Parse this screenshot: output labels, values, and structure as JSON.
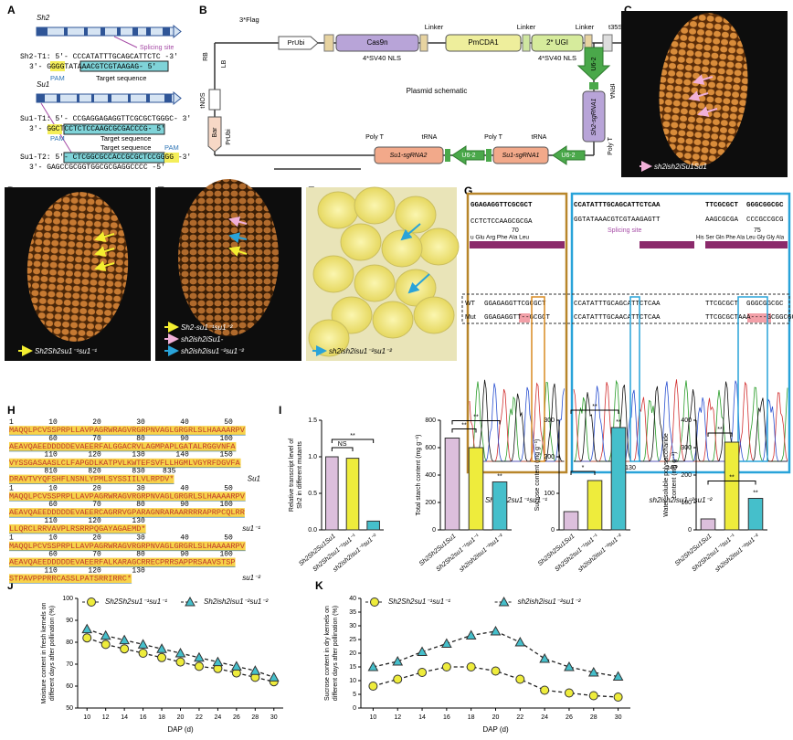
{
  "panel_letters": [
    "A",
    "B",
    "C",
    "D",
    "E",
    "F",
    "G",
    "H",
    "I",
    "J",
    "K"
  ],
  "A": {
    "gene1": "Sh2",
    "sh2_t1": "Sh2-T1: 5'- CCCATATTTGCAGCATTCTC -3'",
    "sh2_t1_rev": "3'- GGGGTATAAACGTCGTAAGAG- 5'",
    "splicing_site": "Splicing site",
    "pam1": "PAM",
    "target1": "Target sequence",
    "gene2": "Su1",
    "su1_t1": "Su1-T1: 5'- CCGAGGAGAGGTTCGCGCTGGGC- 3'",
    "su1_t1_rev": "3'- GGCTCCTCTCCAAGCGCGACCCG- 5'",
    "pam2": "PAM",
    "target2": "Target sequence",
    "target3": "Target sequence",
    "pam3": "PAM",
    "su1_t2": "Su1-T2: 5'- CTCGGCGCCACCGCGCTCCGGGG -3'",
    "su1_t2_rev": "3'- GAGCCGCGGTGGCGCGAGGCCCC -5'"
  },
  "B": {
    "flag": "3*Flag",
    "prubi1": "PrUbi",
    "cas9n": "Cas9n",
    "pmcda1": "PmCDA1",
    "ugi": "2* UGI",
    "linker1": "Linker",
    "linker2": "Linker",
    "linker3": "Linker",
    "t35s": "t35S",
    "nls1": "4*SV40 NLS",
    "nls2": "4*SV40 NLS",
    "rb": "RB",
    "lb": "LB",
    "tnos": "tNOS",
    "bar": "Bar",
    "prubi2": "PrUbi",
    "title": "Plasmid schematic",
    "u6_1": "U6-2",
    "trna1": "tRNA",
    "sgrna1": "Sh2-sgRNA1",
    "polyt1": "Poly T",
    "u6_2": "U6-2",
    "sgrna2": "Su1-sgRNA1",
    "trna2": "tRNA",
    "polyt2": "Poly T",
    "u6_3": "U6-2",
    "sgrna3": "Su1-sgRNA2",
    "trna3": "tRNA",
    "polyt3": "Poly T"
  },
  "C": {
    "label": "sh2ish2iSu1Su1"
  },
  "D": {
    "label": "Sh2Sh2su1⁻¹su1⁻¹"
  },
  "E": {
    "legend": [
      "Sh2-su1⁻¹su1⁻²",
      "sh2ish2iSu1-",
      "sh2ish2isu1⁻²su1⁻²"
    ]
  },
  "F": {
    "label": "sh2ish2isu1⁻²su1⁻²"
  },
  "G": {
    "ref1": "GGAGAGGTTCGCGCT",
    "ref1_comp": "CCTCTCCAAGCGCGA",
    "pos1": "70",
    "aa1": "u  Glu Arg Phe Ala Leu",
    "wt1": "GGAGAGGTTCGCGCT",
    "mut1": "GGAGAGGTT--GCGCT",
    "ref2": "CCATATTTGCAGCATTCTCAA",
    "ref2_comp": "GGTATAAACGTCGTAAGAGTT",
    "splicing_site": "Splicing site",
    "ref3": "TTCGCGCT  GGGCGGCGC",
    "ref3_comp": "AAGCGCGA  CCCGCCGCG",
    "aa3": "His Ser Gln  Phe Ala Leu  Gly Gly Ala",
    "pos3": "75",
    "wt2": "CCATATTTGCAGCATTCTCAA",
    "mut2": "CCATATTTGCAACATTCTCAA",
    "wt3": "TTCGCGCT  GGGCGGCGC",
    "mut3": "TTCGCGCTAAA----GCGGCGC",
    "wt": "WT",
    "mut": "Mut",
    "ticks": [
      "130",
      "140"
    ],
    "caption1": "Sh2Sh2su1⁻¹su1⁻¹",
    "caption2": "sh2ish2isu1⁻²su1⁻²"
  },
  "H": {
    "blocks": [
      {
        "label": "Su1",
        "lines": [
          "1        10        20        30        40        50",
          "MAQQLPCVSSPRPLLAVPAGRWRAGVRGRPNVAGLGRGRLSLHAAAARPV",
          "         60        70        80        90       100",
          "AEAVQAEEDDDDDEVAEERFALGGACRVLAGMPAPLGATALRGGVNFA",
          "        110       120       130       140       150",
          "VYSSGASAASLCLFAPGDLKATPVLKWTEFSVFLLHGMLVGYRFDGVFA",
          "        810       820       830    835",
          "DRAVTVYQFSHFLNSNLYPMLSYSSIILVLRPDV*"
        ]
      },
      {
        "label": "su1⁻¹",
        "lines": [
          "1        10        20        30        40        50",
          "MAQQLPCVSSPRPLLAVPAGRWRAGVRGRPNVAGLGRGRLSLHAAAARPV",
          "         60        70        80        90       100",
          "AEAVQAEEDDDDDEVAEERCAGRRVGPARAGNRARAARRRRAPRPCQLRR",
          "        110       120       130",
          "LLQRCLRRVAVPLRSRRPQGAYAGAEMD*"
        ]
      },
      {
        "label": "su1⁻²",
        "lines": [
          "1        10        20        30        40        50",
          "MAQQLPCVSSPRPLLAVPAGRWRAGVRGRPNVAGLGRGRLSLHAAAARPV",
          "         60        70        80        90       100",
          "AEAVQAEEDDDDDEVAEERFALKARAGCRRECPRRSAPPRSAAVSTSP",
          "        110       120       130",
          "STPAVPPPRRCASSLPATSRRIRRC*"
        ]
      }
    ]
  },
  "chart_data": [
    {
      "type": "bar",
      "ylabel": [
        "Relative transcript level of",
        "Sh2 in different mutants"
      ],
      "categories": [
        "Sh2Sh2Su1Su1",
        "Sh2Sh2su1⁻¹su1⁻¹",
        "sh2ish2isu1⁻²su1⁻²"
      ],
      "values": [
        1.0,
        0.98,
        0.12
      ],
      "colors": [
        "#dcbfdc",
        "#eeec3c",
        "#45bfcb"
      ],
      "ylim": [
        0,
        1.5
      ],
      "yticks": [
        {
          "value": 0,
          "label": "0.0"
        },
        0.5,
        {
          "value": 1,
          "label": "1.0"
        },
        1.5
      ],
      "annotations": [
        "NS",
        "**"
      ]
    },
    {
      "type": "bar",
      "ylabel": [
        "Total starch content (mg g⁻¹)"
      ],
      "categories": [
        "Sh2Sh2Su1Su1",
        "Sh2Sh2su1⁻¹su1⁻¹",
        "sh2ish2isu1⁻²su1⁻²"
      ],
      "values": [
        670,
        600,
        350
      ],
      "colors": [
        "#dcbfdc",
        "#eeec3c",
        "#45bfcb"
      ],
      "ylim": [
        0,
        800
      ],
      "yticks": [
        0,
        200,
        400,
        600,
        800
      ],
      "annotations": [
        "**",
        "**",
        "**"
      ]
    },
    {
      "type": "bar",
      "ylabel": [
        "Sucrose content (mg g⁻¹)"
      ],
      "categories": [
        "Sh2Sh2Su1Su1",
        "Sh2Sh2su1⁻¹su1⁻¹",
        "sh2ish2isu1⁻²su1⁻²"
      ],
      "values": [
        50,
        135,
        280
      ],
      "colors": [
        "#dcbfdc",
        "#eeec3c",
        "#45bfcb"
      ],
      "ylim": [
        0,
        300
      ],
      "yticks": [
        0,
        100,
        200,
        300
      ],
      "annotations": [
        "*",
        "**",
        "**"
      ]
    },
    {
      "type": "bar",
      "ylabel": [
        "Water-soluble polysaccharide",
        "content (mg g⁻¹)"
      ],
      "categories": [
        "Sh2Sh2Su1Su1",
        "Sh2Sh2su1⁻¹su1⁻¹",
        "sh2ish2isu1⁻²su1⁻²"
      ],
      "values": [
        40,
        320,
        115
      ],
      "colors": [
        "#dcbfdc",
        "#eeec3c",
        "#45bfcb"
      ],
      "ylim": [
        0,
        400
      ],
      "yticks": [
        0,
        100,
        200,
        300,
        400
      ],
      "annotations": [
        "**",
        "**",
        "**"
      ]
    },
    {
      "type": "line",
      "ylabel": [
        "Moisture content in fresh kernels on",
        "different days after pollination (%)"
      ],
      "xlabel": "DAP (d)",
      "x": [
        10,
        12,
        14,
        16,
        18,
        20,
        22,
        24,
        26,
        28,
        30
      ],
      "xlim": [
        9,
        31
      ],
      "xticks": [
        10,
        12,
        14,
        16,
        18,
        20,
        22,
        24,
        26,
        28,
        30
      ],
      "ylim": [
        50,
        100
      ],
      "yticks": [
        50,
        60,
        70,
        80,
        90,
        100
      ],
      "series": [
        {
          "name": "Sh2Sh2su1⁻¹su1⁻¹",
          "color": "#eeec3c",
          "marker": "circle",
          "values": [
            82,
            79,
            77,
            75,
            73,
            71,
            69,
            68,
            66,
            64,
            62
          ]
        },
        {
          "name": "Sh2ish2isu1⁻²su1⁻²",
          "color": "#45bfcb",
          "marker": "triangle",
          "values": [
            86,
            83,
            81,
            79,
            77,
            75,
            73,
            71,
            69,
            67,
            64
          ]
        }
      ]
    },
    {
      "type": "line",
      "ylabel": [
        "Sucrose content in dry kernels on",
        "different days after pollination (%)"
      ],
      "xlabel": "DAP (d)",
      "x": [
        10,
        12,
        14,
        16,
        18,
        20,
        22,
        24,
        26,
        28,
        30
      ],
      "xlim": [
        9,
        31
      ],
      "xticks": [
        10,
        12,
        14,
        16,
        18,
        20,
        22,
        24,
        26,
        28,
        30
      ],
      "ylim": [
        0,
        40
      ],
      "yticks": [
        0,
        5,
        10,
        15,
        20,
        25,
        30,
        35,
        40
      ],
      "series": [
        {
          "name": "Sh2Sh2su1⁻¹su1⁻¹",
          "color": "#eeec3c",
          "marker": "circle",
          "values": [
            8,
            10.5,
            13,
            15,
            15,
            13.5,
            10.5,
            6.5,
            5.5,
            4.5,
            4
          ]
        },
        {
          "name": "sh2ish2isu1⁻²su1⁻²",
          "color": "#45bfcb",
          "marker": "triangle",
          "values": [
            15,
            17,
            20.5,
            23.5,
            26.5,
            28,
            24,
            18,
            15,
            13,
            11.5
          ]
        }
      ]
    }
  ]
}
